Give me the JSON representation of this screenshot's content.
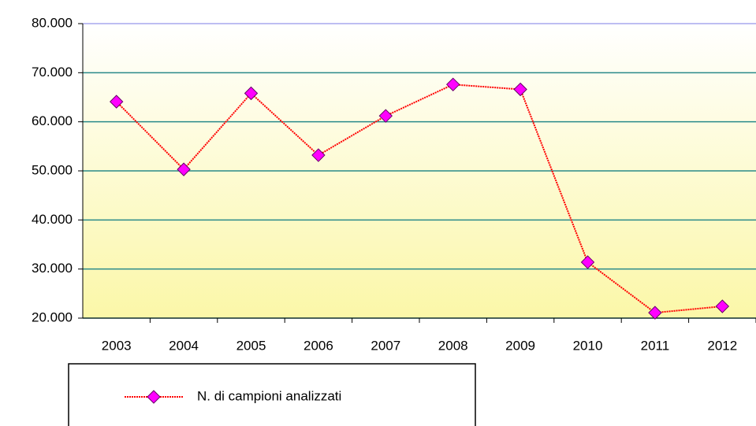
{
  "chart_data": {
    "type": "line",
    "categories": [
      "2003",
      "2004",
      "2005",
      "2006",
      "2007",
      "2008",
      "2009",
      "2010",
      "2011",
      "2012"
    ],
    "series": [
      {
        "name": "N. di campioni analizzati",
        "color": "#ff0000",
        "marker_color": "#ff00ff",
        "values": [
          64100,
          50300,
          65800,
          53200,
          61200,
          67600,
          66600,
          31400,
          21100,
          22400
        ]
      }
    ],
    "ylim": [
      20000,
      80000
    ],
    "yticks": [
      {
        "value": 20000,
        "label": "20.000"
      },
      {
        "value": 30000,
        "label": "30.000"
      },
      {
        "value": 40000,
        "label": "40.000"
      },
      {
        "value": 50000,
        "label": "50.000"
      },
      {
        "value": 60000,
        "label": "60.000"
      },
      {
        "value": 70000,
        "label": "70.000"
      },
      {
        "value": 80000,
        "label": "80.000"
      }
    ],
    "grid": true,
    "legend": "bottom-left"
  }
}
